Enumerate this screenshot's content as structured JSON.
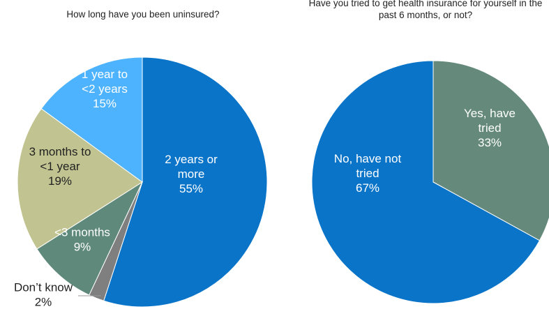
{
  "chart_data": [
    {
      "type": "pie",
      "title": "How long have you been uninsured?",
      "slices": [
        {
          "label": [
            "2 years or",
            "more"
          ],
          "pct_label": "55%",
          "value": 55,
          "color": "#0A74C9",
          "text_color": "#ffffff"
        },
        {
          "label": [
            "Don’t know"
          ],
          "pct_label": "2%",
          "value": 2,
          "color": "#7F7F7F",
          "text_color": "#222222"
        },
        {
          "label": [
            "<3 months"
          ],
          "pct_label": "9%",
          "value": 9,
          "color": "#5F8A7B",
          "text_color": "#ffffff"
        },
        {
          "label": [
            "3 months to",
            "<1 year"
          ],
          "pct_label": "19%",
          "value": 19,
          "color": "#C1C491",
          "text_color": "#222222"
        },
        {
          "label": [
            "1 year to",
            "<2 years"
          ],
          "pct_label": "15%",
          "value": 15,
          "color": "#4DB3FF",
          "text_color": "#ffffff"
        }
      ]
    },
    {
      "type": "pie",
      "title": "Have you tried to get health insurance for yourself in the past 6 months, or not?",
      "slices": [
        {
          "label": [
            "Yes, have",
            "tried"
          ],
          "pct_label": "33%",
          "value": 33,
          "color": "#658A7C",
          "text_color": "#ffffff"
        },
        {
          "label": [
            "No, have not",
            "tried"
          ],
          "pct_label": "67%",
          "value": 67,
          "color": "#0A74C9",
          "text_color": "#ffffff"
        }
      ]
    }
  ]
}
